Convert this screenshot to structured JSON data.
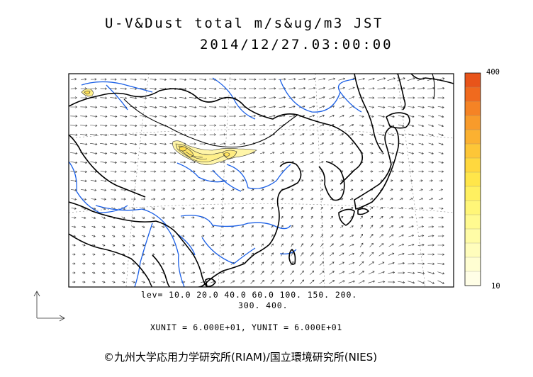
{
  "title": {
    "line1": "U-V&Dust total m/s&ug/m3 JST",
    "line2": "2014/12/27.03:00:00"
  },
  "legend": {
    "levels_line1": "lev= 10.0 20.0 40.0 60.0 100. 150. 200.",
    "levels_line2": "300. 400.",
    "units": "XUNIT = 6.000E+01, YUNIT = 6.000E+01"
  },
  "colorbar": {
    "max_label": "400",
    "min_label": "10",
    "colors": [
      "#e8541a",
      "#f06a1e",
      "#f58325",
      "#f89b2b",
      "#fbb131",
      "#fdc637",
      "#ffd83e",
      "#ffe64a",
      "#fff060",
      "#fff678",
      "#fffa90",
      "#fffca6",
      "#fffdbc",
      "#fffed2",
      "#fffee6"
    ]
  },
  "credit": "©九州大学応用力学研究所(RIAM)/国立環境研究所(NIES)",
  "colors": {
    "coastline": "#000000",
    "rivers": "#1a5fe6",
    "vectors": "#333333",
    "dust_fill": "#fff5a8",
    "dust_contour": "#333333"
  },
  "map_features": {
    "icons": [
      "north-arrow-icon",
      "east-arrow-icon"
    ]
  }
}
